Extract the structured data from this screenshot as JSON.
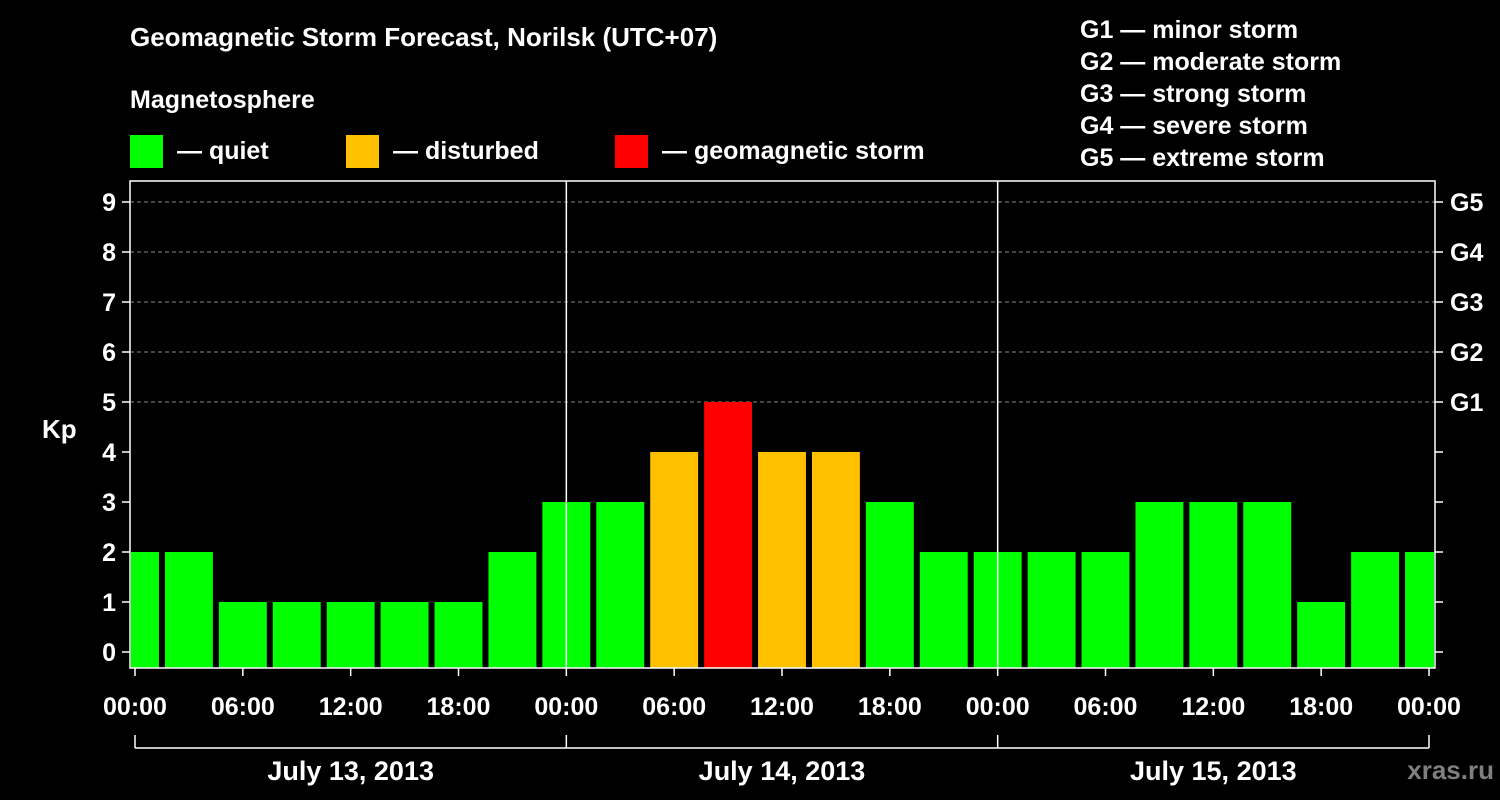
{
  "header": {
    "title": "Geomagnetic Storm Forecast, Norilsk (UTC+07)",
    "subtitle": "Magnetosphere"
  },
  "legend": [
    {
      "label": "— quiet",
      "color": "#00ff00"
    },
    {
      "label": "— disturbed",
      "color": "#ffc000"
    },
    {
      "label": "— geomagnetic storm",
      "color": "#ff0000"
    }
  ],
  "storm_levels": [
    "G1 — minor storm",
    "G2 — moderate storm",
    "G3 — strong storm",
    "G4 — severe storm",
    "G5 — extreme storm"
  ],
  "watermark": "xras.ru",
  "chart_data": {
    "type": "bar",
    "ylabel": "Kp",
    "ylim": [
      0,
      9
    ],
    "y_ticks": [
      "0",
      "1",
      "2",
      "3",
      "4",
      "5",
      "6",
      "7",
      "8",
      "9"
    ],
    "right_ticks": [
      {
        "label": "G1",
        "kp": 5
      },
      {
        "label": "G2",
        "kp": 6
      },
      {
        "label": "G3",
        "kp": 7
      },
      {
        "label": "G4",
        "kp": 8
      },
      {
        "label": "G5",
        "kp": 9
      }
    ],
    "x_ticks": [
      "00:00",
      "06:00",
      "12:00",
      "18:00",
      "00:00",
      "06:00",
      "12:00",
      "18:00",
      "00:00",
      "06:00",
      "12:00",
      "18:00",
      "00:00"
    ],
    "x_range_hours": [
      0,
      72
    ],
    "day_labels": [
      "July 13, 2013",
      "July 14, 2013",
      "July 15, 2013"
    ],
    "grid": "horizontal dashed at Kp 5-9",
    "bar_interval_hours": 3,
    "bars": [
      {
        "start_hour": 0,
        "kp": 2
      },
      {
        "start_hour": 3,
        "kp": 2
      },
      {
        "start_hour": 6,
        "kp": 1
      },
      {
        "start_hour": 9,
        "kp": 1
      },
      {
        "start_hour": 12,
        "kp": 1
      },
      {
        "start_hour": 15,
        "kp": 1
      },
      {
        "start_hour": 18,
        "kp": 1
      },
      {
        "start_hour": 21,
        "kp": 2
      },
      {
        "start_hour": 24,
        "kp": 3
      },
      {
        "start_hour": 27,
        "kp": 3
      },
      {
        "start_hour": 30,
        "kp": 4
      },
      {
        "start_hour": 33,
        "kp": 5
      },
      {
        "start_hour": 36,
        "kp": 4
      },
      {
        "start_hour": 39,
        "kp": 4
      },
      {
        "start_hour": 42,
        "kp": 3
      },
      {
        "start_hour": 45,
        "kp": 2
      },
      {
        "start_hour": 48,
        "kp": 2
      },
      {
        "start_hour": 51,
        "kp": 2
      },
      {
        "start_hour": 54,
        "kp": 2
      },
      {
        "start_hour": 57,
        "kp": 3
      },
      {
        "start_hour": 60,
        "kp": 3
      },
      {
        "start_hour": 63,
        "kp": 3
      },
      {
        "start_hour": 66,
        "kp": 1
      },
      {
        "start_hour": 69,
        "kp": 2
      },
      {
        "start_hour": 72,
        "kp": 2
      }
    ],
    "colors": {
      "quiet": "#00ff00",
      "disturbed": "#ffc000",
      "storm": "#ff0000"
    }
  }
}
